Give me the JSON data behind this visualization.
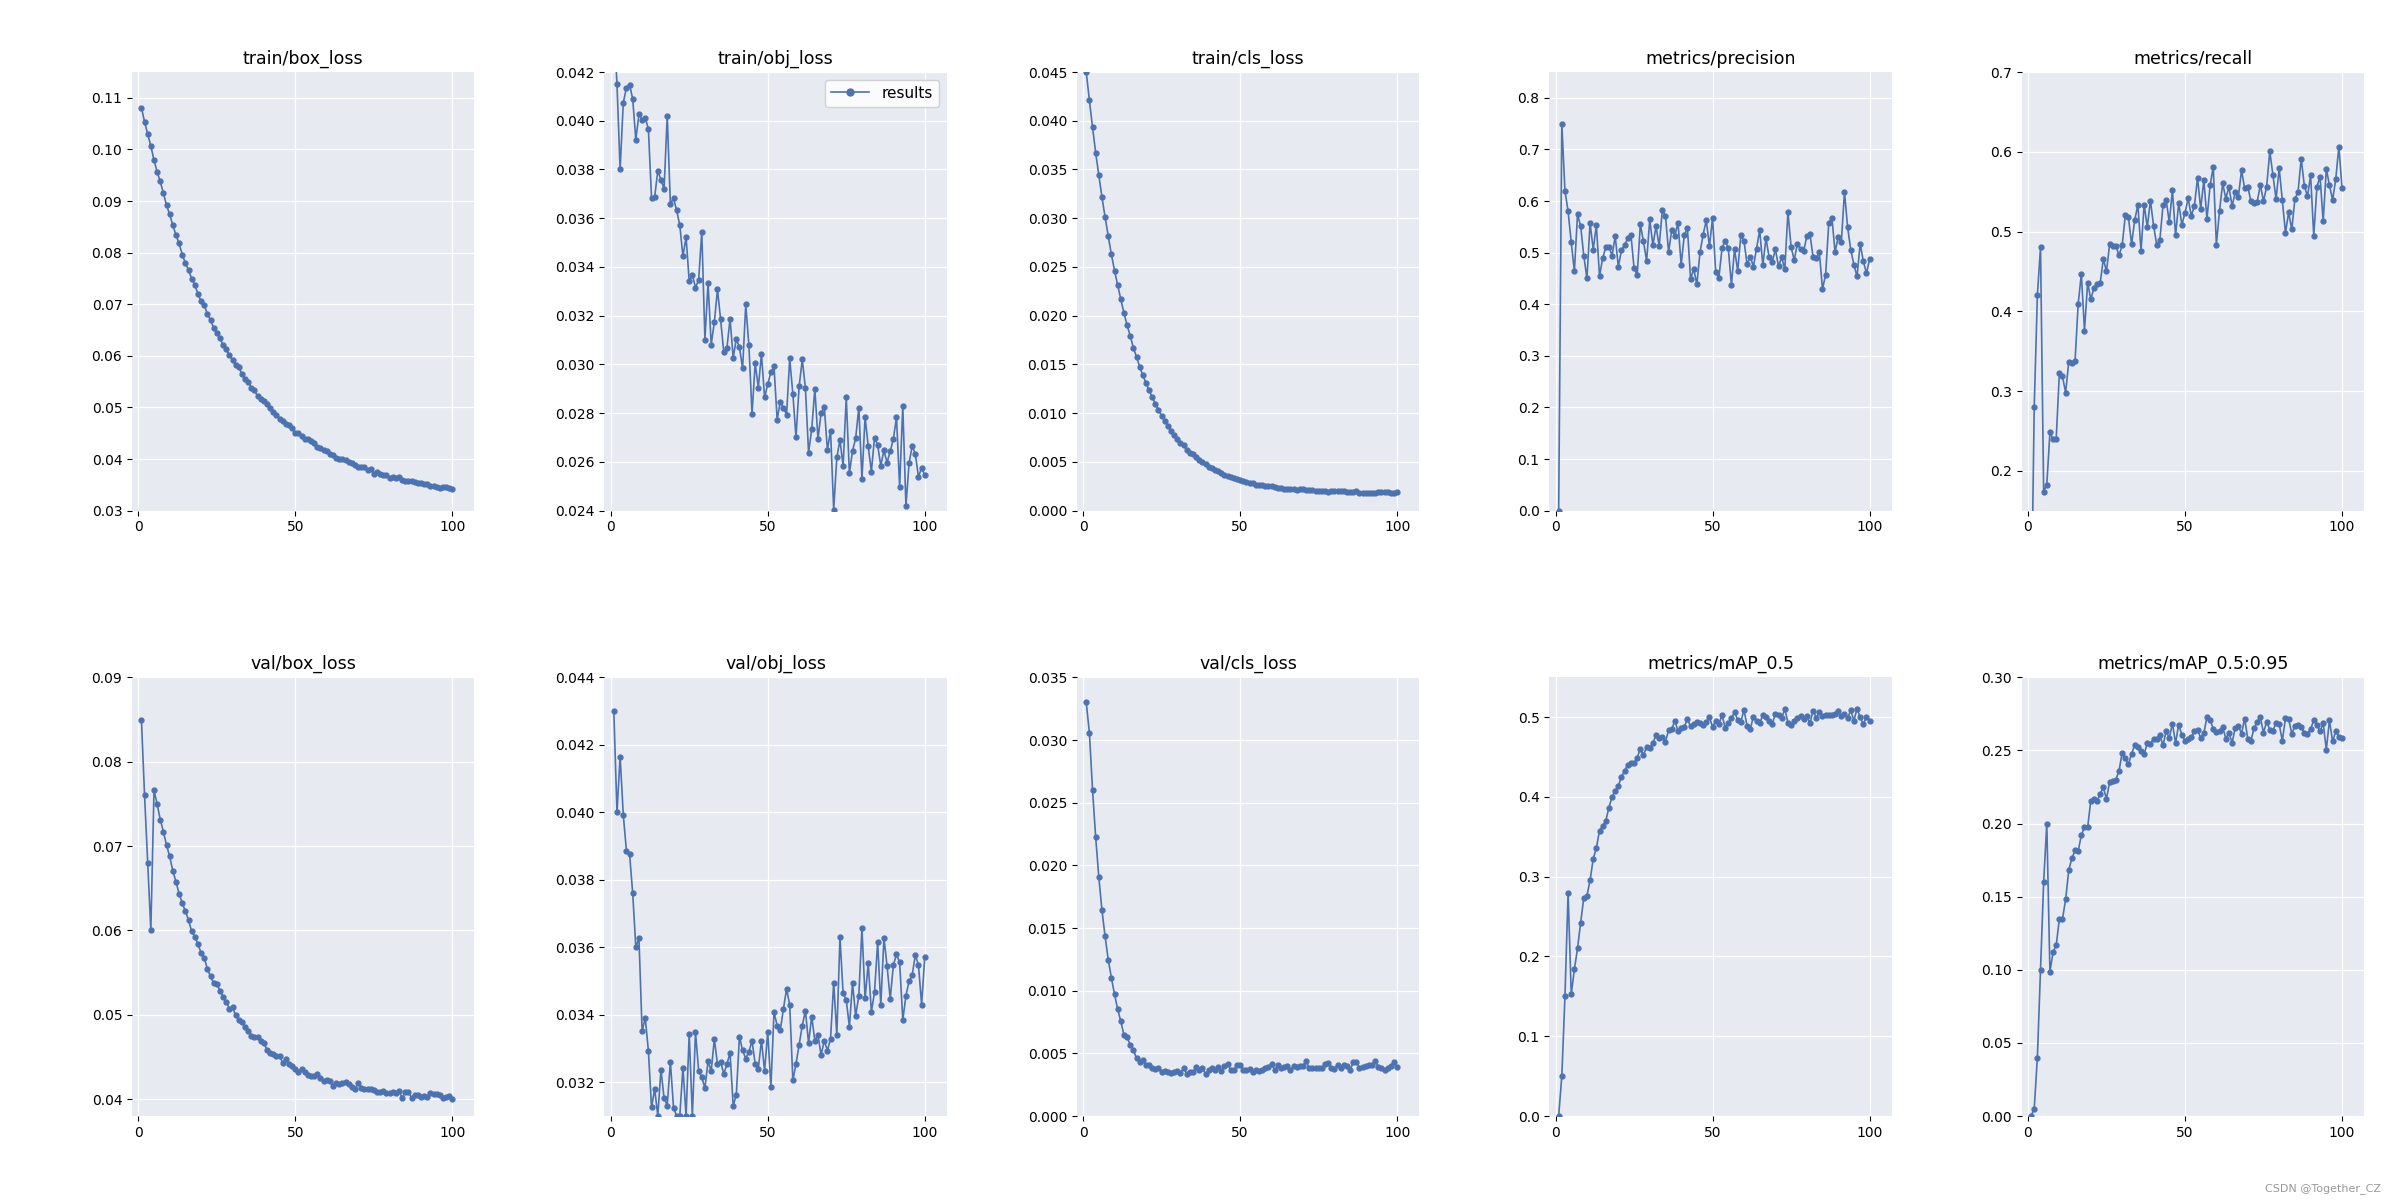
{
  "titles": [
    "train/box_loss",
    "train/obj_loss",
    "train/cls_loss",
    "metrics/precision",
    "metrics/recall",
    "val/box_loss",
    "val/obj_loss",
    "val/cls_loss",
    "metrics/mAP_0.5",
    "metrics/mAP_0.5:0.95"
  ],
  "legend_label": "results",
  "line_color": "#4c72b0",
  "marker": "o",
  "markersize": 3.5,
  "linewidth": 1.2,
  "bg_color": "#e8eaf2",
  "fig_bg_color": "#ffffff",
  "legend_subplot": 1,
  "n_epochs": 100,
  "seed": 42,
  "watermark": "CSDN @Together_CZ"
}
